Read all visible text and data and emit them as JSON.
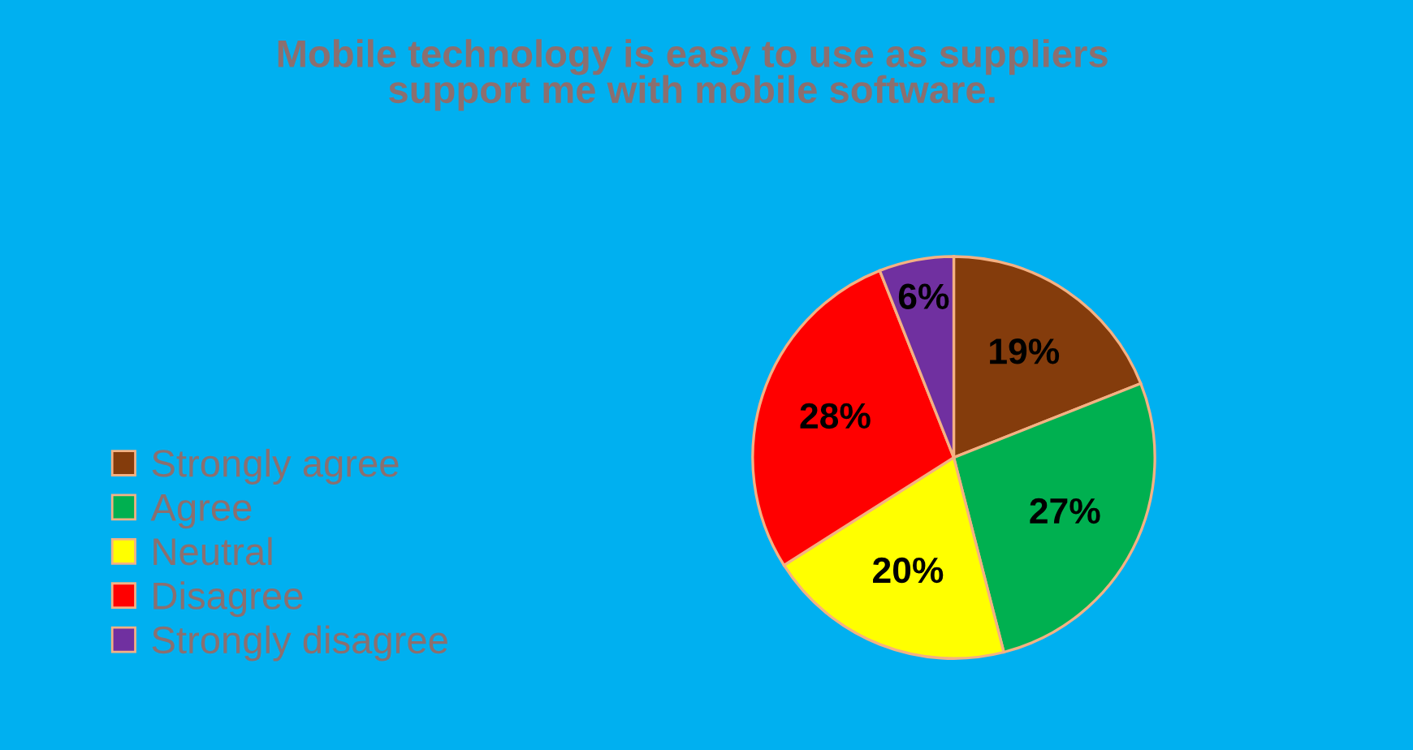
{
  "chart_data": {
    "type": "pie",
    "title": "Mobile technology is easy to use as suppliers\nsupport me with mobile software.",
    "categories": [
      "Strongly agree",
      "Agree",
      "Neutral",
      "Disagree",
      "Strongly disagree"
    ],
    "values": [
      19,
      27,
      20,
      28,
      6
    ],
    "value_labels": [
      "19%",
      "27%",
      "20%",
      "28%",
      "6%"
    ],
    "colors": [
      "#843c0c",
      "#00b050",
      "#ffff00",
      "#ff0000",
      "#7030a0"
    ],
    "legend": "left"
  }
}
